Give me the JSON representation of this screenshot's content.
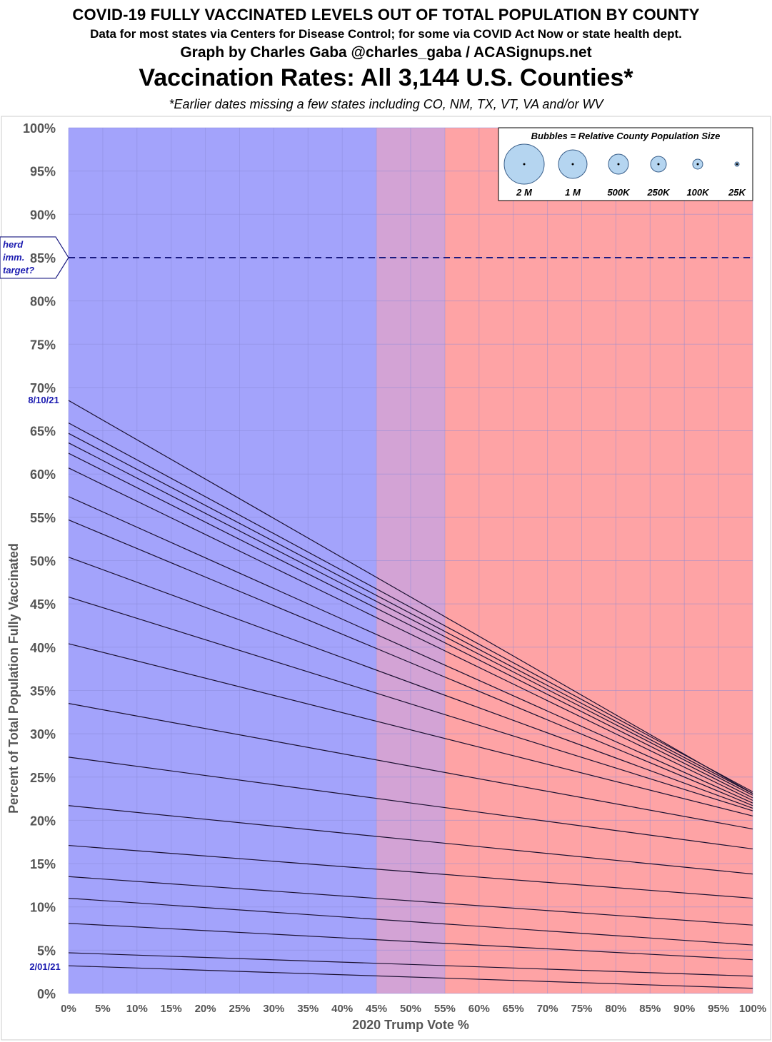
{
  "header": {
    "line1": "COVID-19 FULLY VACCINATED LEVELS OUT OF TOTAL POPULATION BY COUNTY",
    "line2": "Data for most states via Centers for Disease Control; for some via COVID Act Now or state health dept.",
    "line3": "Graph by Charles Gaba @charles_gaba / ACASignups.net",
    "title": "Vaccination Rates: All 3,144 U.S. Counties*",
    "footnote": "*Earlier dates missing a few states including CO, NM, TX, VT, VA and/or WV"
  },
  "colors": {
    "blue_zone": "#a3a3fb",
    "purple_zone": "#d3a3d5",
    "red_zone": "#fea3a5",
    "trend_line": "#1a1030",
    "herd_line": "#1a1a80",
    "date_label": "#1a1ab0"
  },
  "chart_data": {
    "type": "line",
    "xlabel": "2020 Trump Vote %",
    "ylabel": "Percent of Total Population Fully Vaccinated",
    "xlim": [
      0,
      100
    ],
    "ylim": [
      0,
      100
    ],
    "x_ticks": [
      "0%",
      "5%",
      "10%",
      "15%",
      "20%",
      "25%",
      "30%",
      "35%",
      "40%",
      "45%",
      "50%",
      "55%",
      "60%",
      "65%",
      "70%",
      "75%",
      "80%",
      "85%",
      "90%",
      "95%",
      "100%"
    ],
    "y_ticks": [
      "0%",
      "5%",
      "10%",
      "15%",
      "20%",
      "25%",
      "30%",
      "35%",
      "40%",
      "45%",
      "50%",
      "55%",
      "60%",
      "65%",
      "70%",
      "75%",
      "80%",
      "85%",
      "90%",
      "95%",
      "100%"
    ],
    "grid": true,
    "background_zones": [
      {
        "from": 0,
        "to": 45,
        "color": "blue"
      },
      {
        "from": 45,
        "to": 55,
        "color": "purple"
      },
      {
        "from": 55,
        "to": 100,
        "color": "red"
      }
    ],
    "reference_line": {
      "y": 85,
      "label_lines": [
        "herd",
        "imm.",
        "target?"
      ]
    },
    "first_date_label": "2/01/21",
    "last_date_label": "8/10/21",
    "series": [
      {
        "x": [
          0,
          100
        ],
        "y": [
          3.2,
          0.6
        ]
      },
      {
        "x": [
          0,
          100
        ],
        "y": [
          4.7,
          2.0
        ]
      },
      {
        "x": [
          0,
          100
        ],
        "y": [
          8.1,
          3.9
        ]
      },
      {
        "x": [
          0,
          100
        ],
        "y": [
          11.0,
          5.6
        ]
      },
      {
        "x": [
          0,
          100
        ],
        "y": [
          13.5,
          7.9
        ]
      },
      {
        "x": [
          0,
          100
        ],
        "y": [
          17.1,
          11.0
        ]
      },
      {
        "x": [
          0,
          100
        ],
        "y": [
          21.7,
          13.8
        ]
      },
      {
        "x": [
          0,
          100
        ],
        "y": [
          27.3,
          16.7
        ]
      },
      {
        "x": [
          0,
          100
        ],
        "y": [
          33.5,
          19.0
        ]
      },
      {
        "x": [
          0,
          100
        ],
        "y": [
          40.4,
          20.5
        ]
      },
      {
        "x": [
          0,
          100
        ],
        "y": [
          45.8,
          21.1
        ]
      },
      {
        "x": [
          0,
          100
        ],
        "y": [
          50.4,
          21.4
        ]
      },
      {
        "x": [
          0,
          100
        ],
        "y": [
          54.7,
          21.7
        ]
      },
      {
        "x": [
          0,
          100
        ],
        "y": [
          57.4,
          22.0
        ]
      },
      {
        "x": [
          0,
          100
        ],
        "y": [
          60.7,
          22.3
        ]
      },
      {
        "x": [
          0,
          100
        ],
        "y": [
          62.4,
          22.6
        ]
      },
      {
        "x": [
          0,
          100
        ],
        "y": [
          63.6,
          22.9
        ]
      },
      {
        "x": [
          0,
          100
        ],
        "y": [
          64.7,
          23.1
        ]
      },
      {
        "x": [
          0,
          100
        ],
        "y": [
          65.9,
          23.3
        ]
      },
      {
        "x": [
          0,
          100
        ],
        "y": [
          68.5,
          23.1
        ]
      }
    ]
  },
  "legend": {
    "title": "Bubbles = Relative  County Population Size",
    "items": [
      {
        "label": "2 M",
        "size_rank": 6
      },
      {
        "label": "1 M",
        "size_rank": 5
      },
      {
        "label": "500K",
        "size_rank": 4
      },
      {
        "label": "250K",
        "size_rank": 3
      },
      {
        "label": "100K",
        "size_rank": 2
      },
      {
        "label": "25K",
        "size_rank": 1
      }
    ]
  }
}
